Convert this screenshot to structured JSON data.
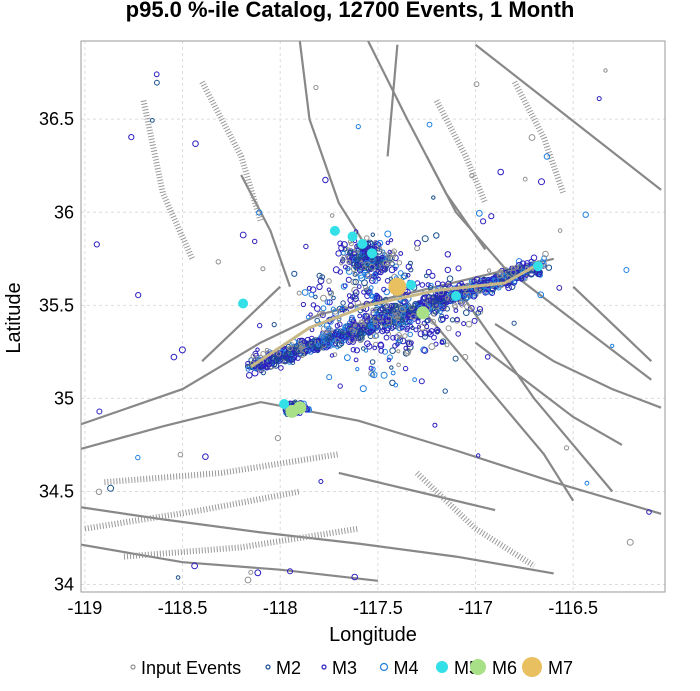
{
  "chart_data": {
    "type": "scatter",
    "title": "p95.0 %-ile Catalog, 12700 Events, 1 Month",
    "xlabel": "Longitude",
    "ylabel": "Latitude",
    "xlim": [
      -119.02,
      -116.03
    ],
    "ylim": [
      33.96,
      36.92
    ],
    "x_ticks": [
      -119,
      -118.5,
      -118,
      -117.5,
      -117,
      -116.5
    ],
    "y_ticks": [
      34,
      34.5,
      35,
      35.5,
      36,
      36.5
    ],
    "grid": true,
    "legend_position": "bottom",
    "legend": [
      {
        "name": "Input Events",
        "color": "#909090",
        "fill": false
      },
      {
        "name": "M2",
        "color": "#1a4f8f",
        "fill": false
      },
      {
        "name": "M3",
        "color": "#2b1fbf",
        "fill": false
      },
      {
        "name": "M4",
        "color": "#1f7fe0",
        "fill": false
      },
      {
        "name": "M5",
        "color": "#33e0e8",
        "fill": true
      },
      {
        "name": "M6",
        "color": "#a8e088",
        "fill": true
      },
      {
        "name": "M7",
        "color": "#e8c060",
        "fill": true
      }
    ],
    "mainshocks": [
      {
        "mag_class": "M7",
        "lon": -117.4,
        "lat": 35.6
      },
      {
        "mag_class": "M6",
        "lon": -117.27,
        "lat": 35.46
      },
      {
        "mag_class": "M6",
        "lon": -117.9,
        "lat": 34.95
      },
      {
        "mag_class": "M6",
        "lon": -117.94,
        "lat": 34.93
      },
      {
        "mag_class": "M5",
        "lon": -117.63,
        "lat": 35.87
      },
      {
        "mag_class": "M5",
        "lon": -117.53,
        "lat": 35.78
      },
      {
        "mag_class": "M5",
        "lon": -117.33,
        "lat": 35.61
      },
      {
        "mag_class": "M5",
        "lon": -118.19,
        "lat": 35.51
      },
      {
        "mag_class": "M5",
        "lon": -117.1,
        "lat": 35.55
      },
      {
        "mag_class": "M5",
        "lon": -116.68,
        "lat": 35.71
      },
      {
        "mag_class": "M5",
        "lon": -117.72,
        "lat": 35.9
      },
      {
        "mag_class": "M5",
        "lon": -117.58,
        "lat": 35.83
      },
      {
        "mag_class": "M5",
        "lon": -117.98,
        "lat": 34.97
      }
    ]
  }
}
